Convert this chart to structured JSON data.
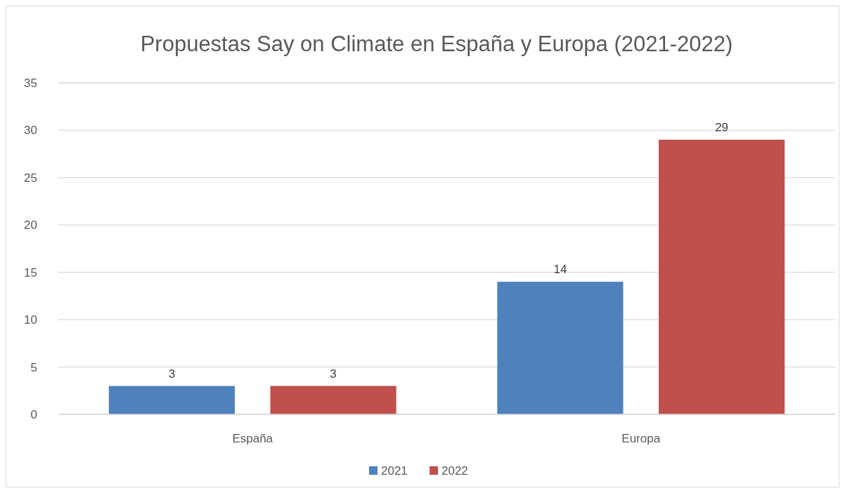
{
  "chart_data": {
    "type": "bar",
    "title": "Propuestas Say on Climate en España y Europa (2021-2022)",
    "categories": [
      "España",
      "Europa"
    ],
    "series": [
      {
        "name": "2021",
        "color": "#4f81bd",
        "values": [
          3,
          14
        ]
      },
      {
        "name": "2022",
        "color": "#c0504d",
        "values": [
          3,
          29
        ]
      }
    ],
    "ylim": [
      0,
      35
    ],
    "yticks": [
      0,
      5,
      10,
      15,
      20,
      25,
      30,
      35
    ],
    "grid": "y",
    "legend": "bottom",
    "data_labels": true
  }
}
